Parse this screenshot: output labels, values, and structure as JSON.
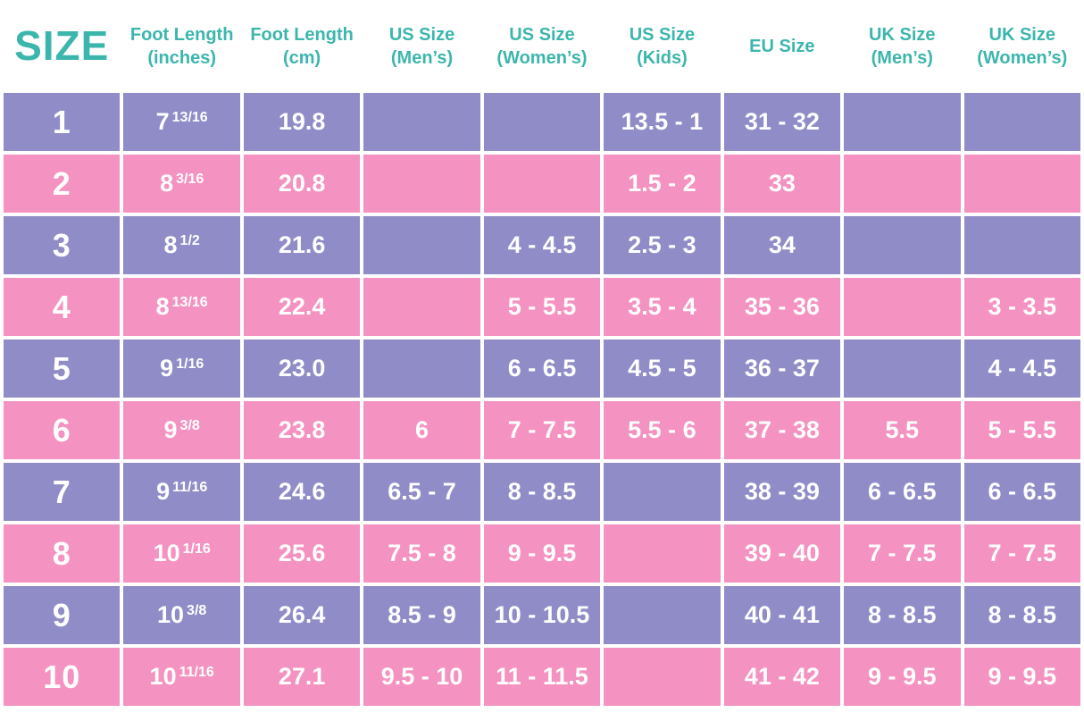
{
  "colors": {
    "teal": "#46b5ae",
    "purple": "#8f8cc7",
    "pink": "#f492c1",
    "header_text": "#3cb6ad",
    "grid_and_text": "#ffffff"
  },
  "chart_data": {
    "type": "table",
    "title": "",
    "columns": [
      "SIZE",
      "Foot Length (inches)",
      "Foot Length (cm)",
      "US Size (Men’s)",
      "US Size (Women’s)",
      "US Size (Kids)",
      "EU Size",
      "UK Size (Men’s)",
      "UK Size (Women’s)"
    ],
    "header_lines": [
      [
        "SIZE",
        ""
      ],
      [
        "Foot Length",
        "(inches)"
      ],
      [
        "Foot Length",
        "(cm)"
      ],
      [
        "US Size",
        "(Men’s)"
      ],
      [
        "US Size",
        "(Women’s)"
      ],
      [
        "US Size",
        "(Kids)"
      ],
      [
        "EU Size",
        ""
      ],
      [
        "UK Size",
        "(Men’s)"
      ],
      [
        "UK Size",
        "(Women’s)"
      ]
    ],
    "rows": [
      [
        "1",
        "7 13/16",
        "19.8",
        "",
        "",
        "13.5 - 1",
        "31 - 32",
        "",
        ""
      ],
      [
        "2",
        "8 3/16",
        "20.8",
        "",
        "",
        "1.5 - 2",
        "33",
        "",
        ""
      ],
      [
        "3",
        "8 1/2",
        "21.6",
        "",
        "4 - 4.5",
        "2.5 - 3",
        "34",
        "",
        ""
      ],
      [
        "4",
        "8 13/16",
        "22.4",
        "",
        "5 - 5.5",
        "3.5 - 4",
        "35 - 36",
        "",
        "3 - 3.5"
      ],
      [
        "5",
        "9 1/16",
        "23.0",
        "",
        "6 - 6.5",
        "4.5 - 5",
        "36 - 37",
        "",
        "4 - 4.5"
      ],
      [
        "6",
        "9 3/8",
        "23.8",
        "6",
        "7 - 7.5",
        "5.5 - 6",
        "37 - 38",
        "5.5",
        "5 - 5.5"
      ],
      [
        "7",
        "9 11/16",
        "24.6",
        "6.5 - 7",
        "8 - 8.5",
        "",
        "38 - 39",
        "6 - 6.5",
        "6 - 6.5"
      ],
      [
        "8",
        "10 1/16",
        "25.6",
        "7.5 - 8",
        "9 - 9.5",
        "",
        "39 - 40",
        "7 - 7.5",
        "7 - 7.5"
      ],
      [
        "9",
        "10 3/8",
        "26.4",
        "8.5 - 9",
        "10 - 10.5",
        "",
        "40 - 41",
        "8 - 8.5",
        "8 - 8.5"
      ],
      [
        "10",
        "10 11/16",
        "27.1",
        "9.5 - 10",
        "11 - 11.5",
        "",
        "41 - 42",
        "9 - 9.5",
        "9 - 9.5"
      ]
    ],
    "layout": {
      "grid": "white 4px gridlines",
      "row_fill_alternation": [
        "purple",
        "pink"
      ],
      "first_column_fill": "teal",
      "inches_fractions_superscript": true
    }
  }
}
